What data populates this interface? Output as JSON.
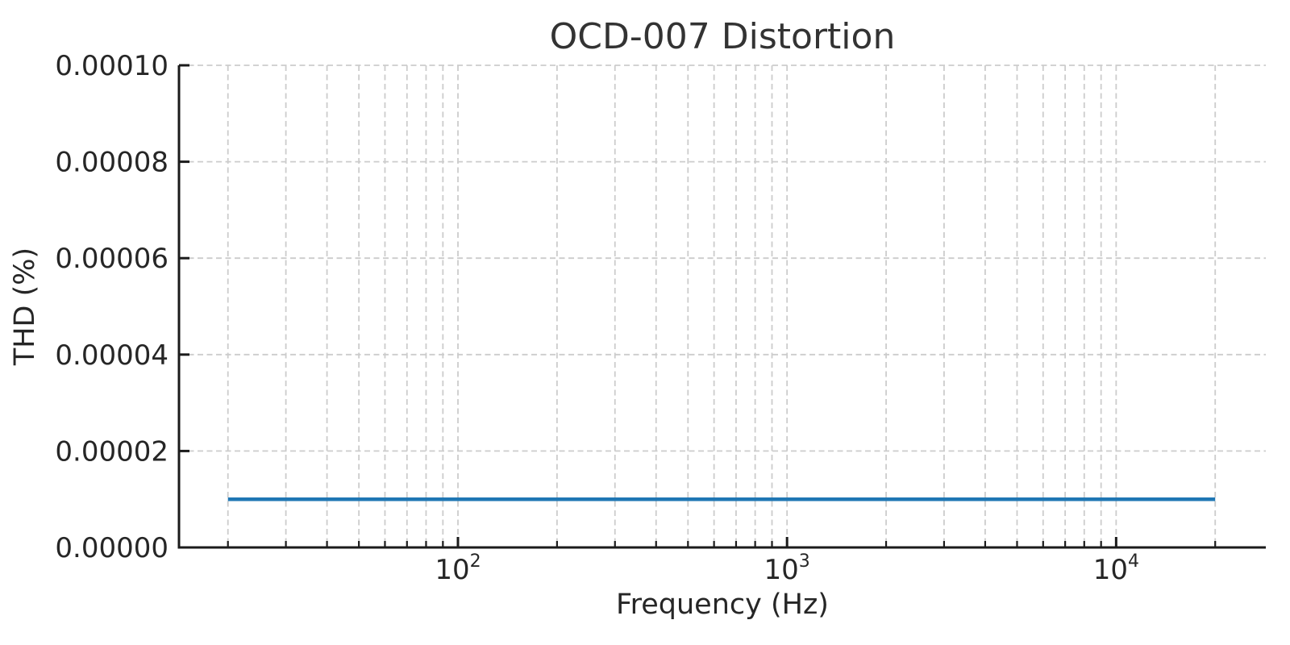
{
  "chart_data": {
    "type": "line",
    "title": "OCD-007 Distortion",
    "xlabel": "Frequency (Hz)",
    "ylabel": "THD (%)",
    "x_scale": "log",
    "x_range": [
      14.2,
      28500
    ],
    "y_range": [
      0,
      0.0001
    ],
    "x_major_ticks": [
      {
        "value": 100,
        "base": "10",
        "exp": "2"
      },
      {
        "value": 1000,
        "base": "10",
        "exp": "3"
      },
      {
        "value": 10000,
        "base": "10",
        "exp": "4"
      }
    ],
    "x_minor_ticks": [
      20,
      30,
      40,
      50,
      60,
      70,
      80,
      90,
      200,
      300,
      400,
      500,
      600,
      700,
      800,
      900,
      2000,
      3000,
      4000,
      5000,
      6000,
      7000,
      8000,
      9000,
      20000
    ],
    "y_ticks": [
      {
        "value": 0.0,
        "label": "0.00000"
      },
      {
        "value": 2e-05,
        "label": "0.00002"
      },
      {
        "value": 4e-05,
        "label": "0.00004"
      },
      {
        "value": 6e-05,
        "label": "0.00006"
      },
      {
        "value": 8e-05,
        "label": "0.00008"
      },
      {
        "value": 0.0001,
        "label": "0.00010"
      }
    ],
    "grid": {
      "show": true,
      "axis": "both",
      "style": "dashed"
    },
    "legend": {
      "show": false
    },
    "series": [
      {
        "name": "THD",
        "color": "#1f77b4",
        "x": [
          20,
          30,
          50,
          100,
          200,
          500,
          1000,
          2000,
          5000,
          10000,
          20000
        ],
        "y": [
          1e-05,
          1e-05,
          1e-05,
          1e-05,
          1e-05,
          1e-05,
          1e-05,
          1e-05,
          1e-05,
          1e-05,
          1e-05
        ]
      }
    ]
  },
  "colors": {
    "line": "#1f77b4",
    "grid": "#cccccc",
    "spine": "#1b1b1b",
    "text": "#262626",
    "title": "#333333",
    "background": "#ffffff"
  }
}
